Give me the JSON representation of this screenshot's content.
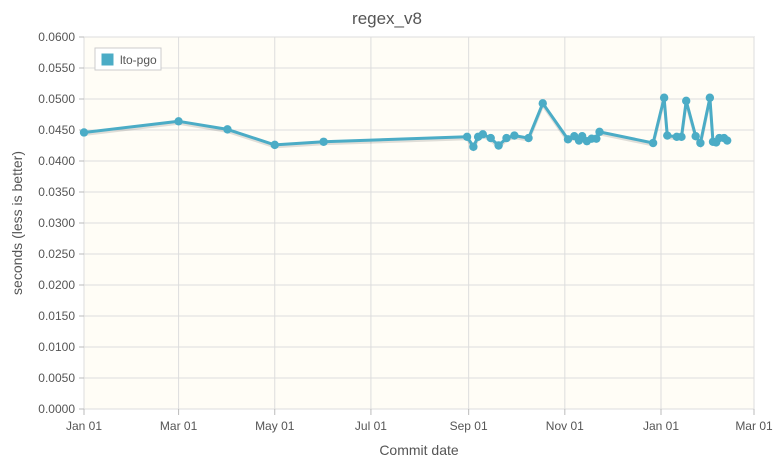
{
  "chart_data": {
    "type": "line",
    "title": "regex_v8",
    "xlabel": "Commit date",
    "ylabel": "seconds (less is better)",
    "x_tick_labels": [
      "Jan 01",
      "Mar 01",
      "May 01",
      "Jul 01",
      "Sep 01",
      "Nov 01",
      "Jan 01",
      "Mar 01"
    ],
    "y_tick_labels": [
      "0.0000",
      "0.0050",
      "0.0100",
      "0.0150",
      "0.0200",
      "0.0250",
      "0.0300",
      "0.0350",
      "0.0400",
      "0.0450",
      "0.0500",
      "0.0550",
      "0.0600"
    ],
    "xlim": [
      "2012-01-01",
      "2013-03-01"
    ],
    "ylim": [
      0,
      0.06
    ],
    "grid": true,
    "legend_position": "top-left",
    "colors": {
      "series": "#4bacc6",
      "plot_background": "#fffdf6",
      "grid": "#dddddd",
      "border": "#bbbbbb"
    },
    "series": [
      {
        "name": "lto-pgo",
        "points": [
          [
            "2012-01-01",
            0.0446
          ],
          [
            "2012-03-01",
            0.0464
          ],
          [
            "2012-04-01",
            0.0451
          ],
          [
            "2012-05-01",
            0.0426
          ],
          [
            "2012-06-01",
            0.0431
          ],
          [
            "2012-08-31",
            0.0439
          ],
          [
            "2012-09-04",
            0.0423
          ],
          [
            "2012-09-07",
            0.0439
          ],
          [
            "2012-09-10",
            0.0443
          ],
          [
            "2012-09-15",
            0.0437
          ],
          [
            "2012-09-20",
            0.0425
          ],
          [
            "2012-09-25",
            0.0437
          ],
          [
            "2012-09-30",
            0.0441
          ],
          [
            "2012-10-09",
            0.0437
          ],
          [
            "2012-10-18",
            0.0493
          ],
          [
            "2012-11-03",
            0.0435
          ],
          [
            "2012-11-07",
            0.044
          ],
          [
            "2012-11-10",
            0.0433
          ],
          [
            "2012-11-12",
            0.044
          ],
          [
            "2012-11-15",
            0.0432
          ],
          [
            "2012-11-18",
            0.0436
          ],
          [
            "2012-11-21",
            0.0436
          ],
          [
            "2012-11-23",
            0.0447
          ],
          [
            "2012-12-27",
            0.0429
          ],
          [
            "2013-01-03",
            0.0502
          ],
          [
            "2013-01-05",
            0.0441
          ],
          [
            "2013-01-11",
            0.0439
          ],
          [
            "2013-01-14",
            0.0439
          ],
          [
            "2013-01-17",
            0.0497
          ],
          [
            "2013-01-23",
            0.044
          ],
          [
            "2013-01-26",
            0.0429
          ],
          [
            "2013-02-01",
            0.0502
          ],
          [
            "2013-02-03",
            0.0431
          ],
          [
            "2013-02-05",
            0.043
          ],
          [
            "2013-02-07",
            0.0437
          ],
          [
            "2013-02-10",
            0.0437
          ],
          [
            "2013-02-12",
            0.0433
          ]
        ]
      }
    ]
  }
}
